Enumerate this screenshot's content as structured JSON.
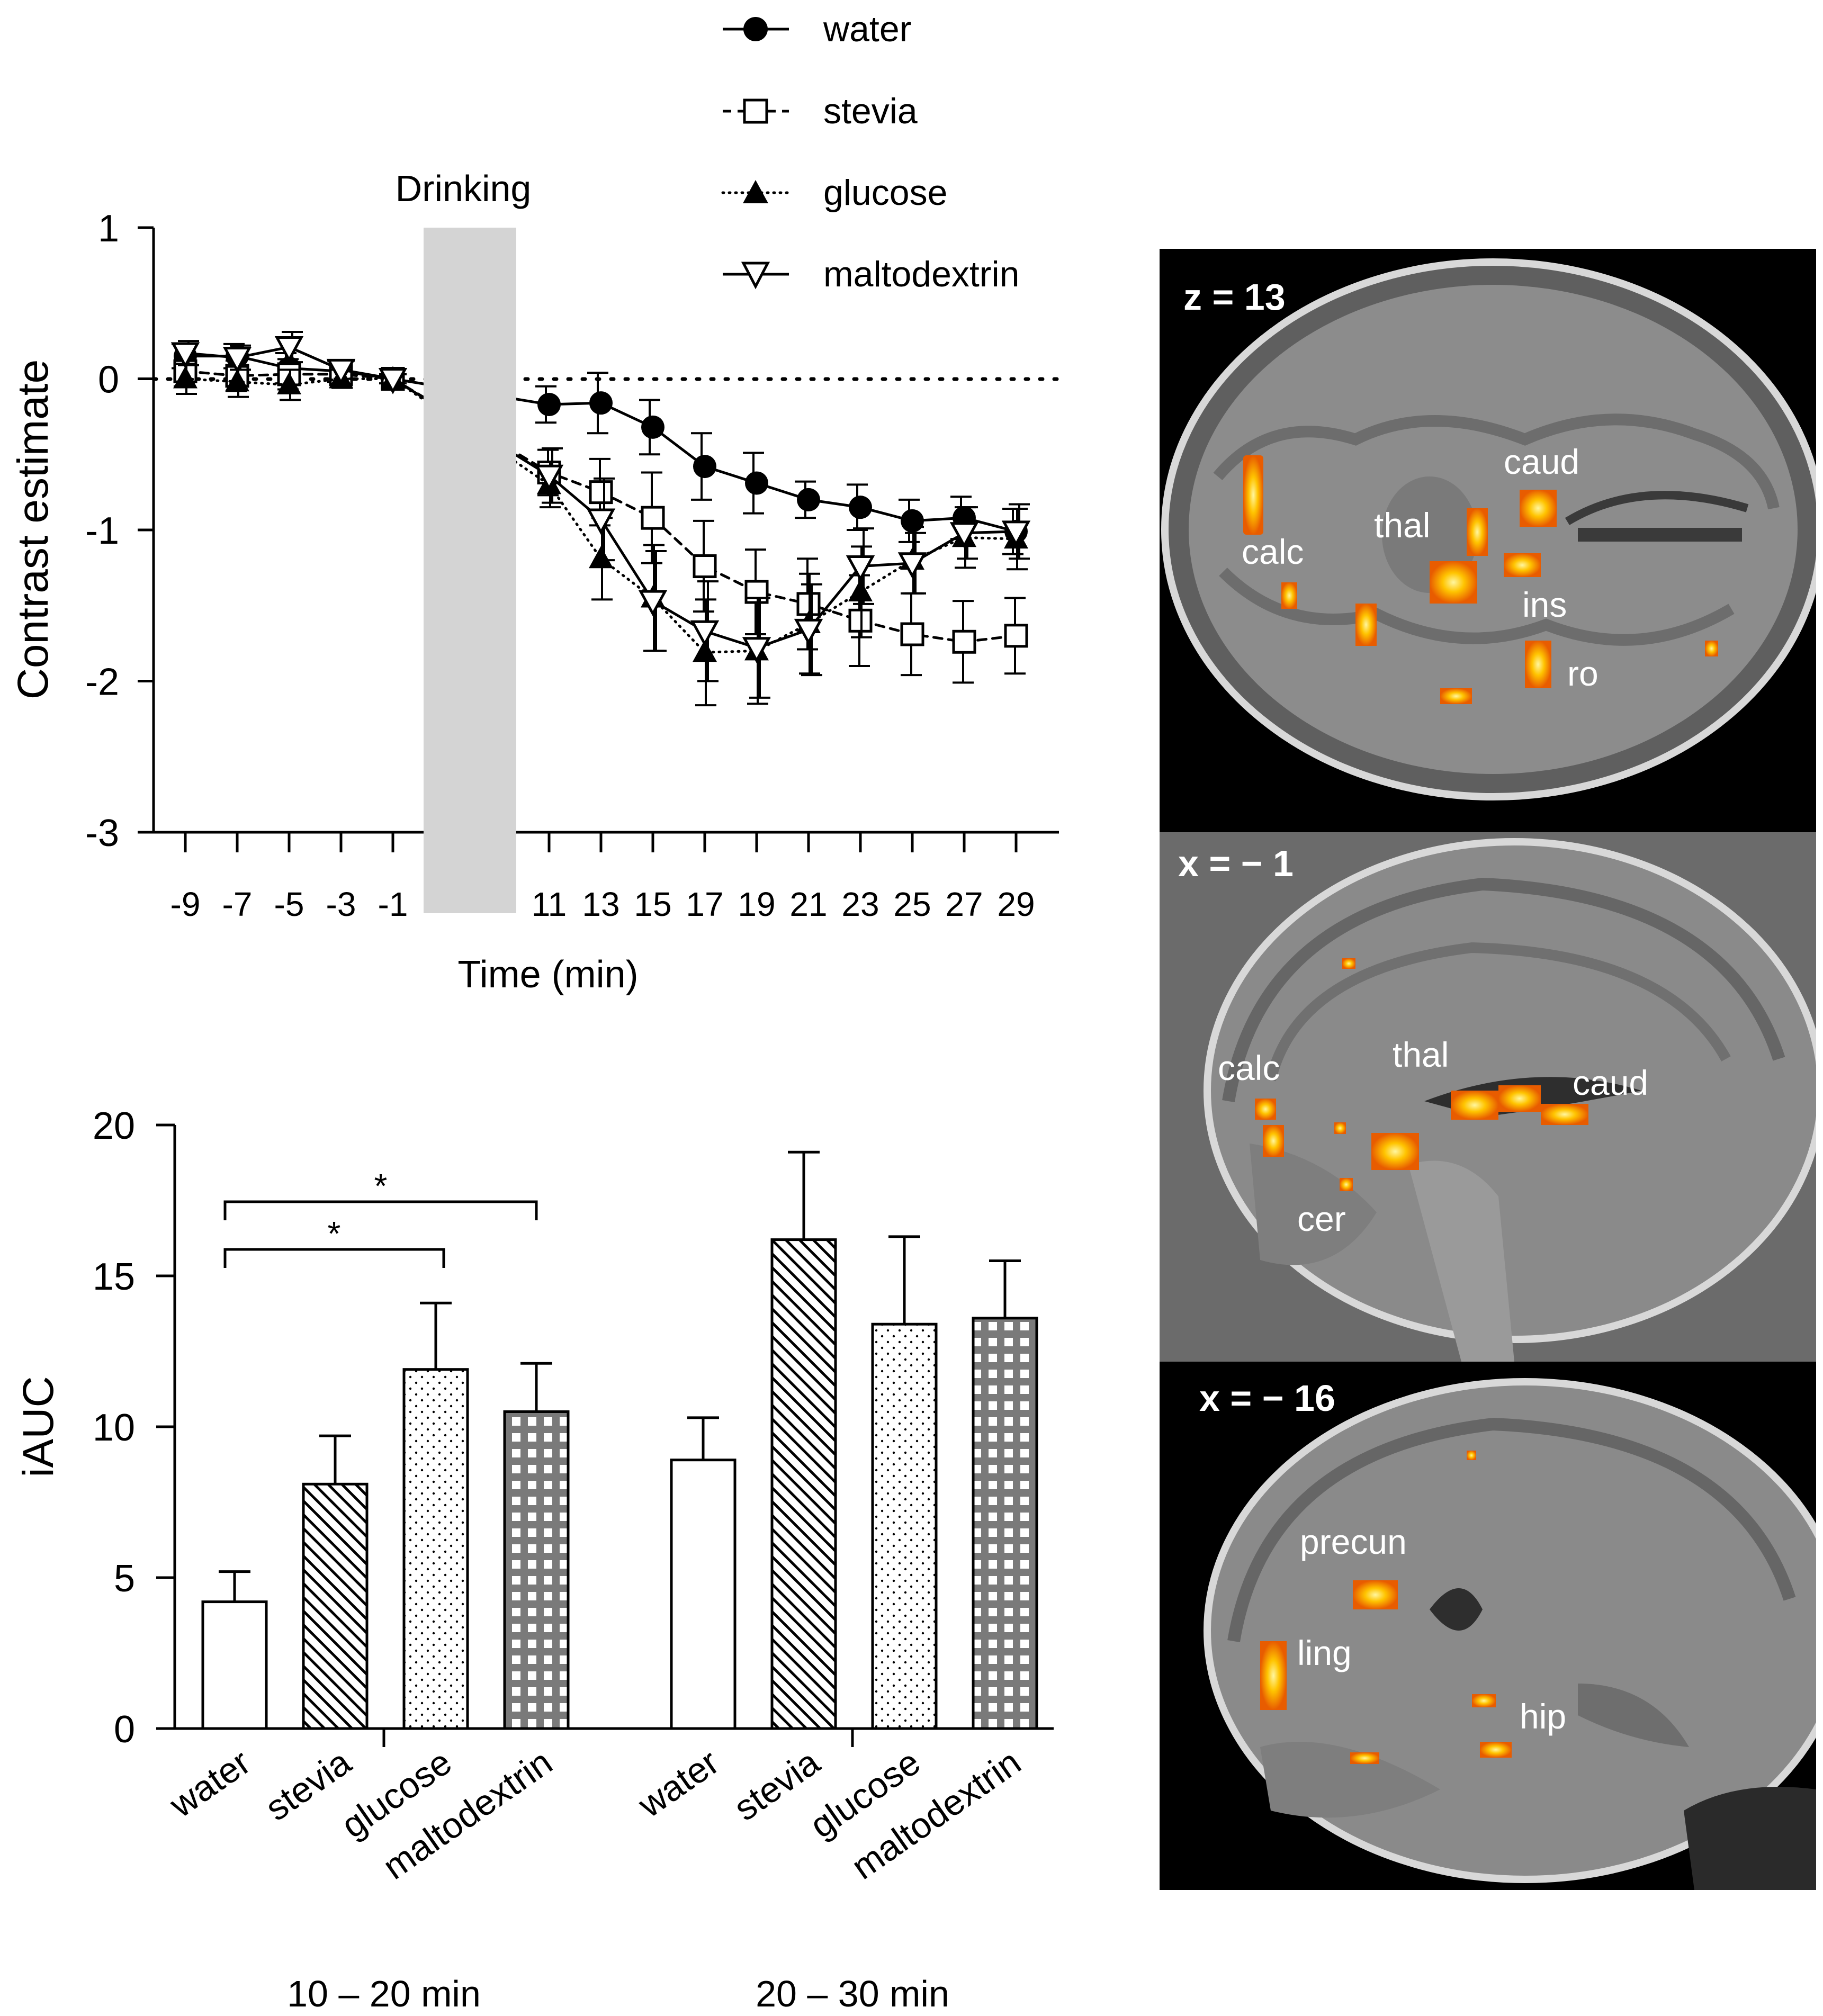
{
  "line_panel": {
    "drinking_label": "Drinking",
    "ylabel": "Contrast estimate",
    "xlabel": "Time (min)",
    "y_ticks": [
      "1",
      "0",
      "-1",
      "-2",
      "-3"
    ],
    "x_ticks": [
      "-9",
      "-7",
      "-5",
      "-3",
      "-1",
      "11",
      "13",
      "15",
      "17",
      "19",
      "21",
      "23",
      "25",
      "27",
      "29"
    ]
  },
  "legend": [
    "water",
    "stevia",
    "glucose",
    "maltodextrin"
  ],
  "bar_panel": {
    "ylabel": "iAUC",
    "y_ticks": [
      "20",
      "15",
      "10",
      "5",
      "0"
    ],
    "group_labels": [
      "10 – 20 min",
      "20 – 30 min"
    ],
    "categories": [
      "water",
      "stevia",
      "glucose",
      "maltodextrin"
    ],
    "significance_marks": [
      "*",
      "*"
    ]
  },
  "brain_panels": [
    {
      "coord_label": "z = 13",
      "labels": [
        "caud",
        "thal",
        "calc",
        "ins",
        "ro"
      ]
    },
    {
      "coord_label": "x = − 1",
      "labels": [
        "calc",
        "thal",
        "caud",
        "cer"
      ]
    },
    {
      "coord_label": "x = − 16",
      "labels": [
        "precun",
        "ling",
        "hip"
      ]
    }
  ],
  "colors": {
    "axis": "#000000",
    "drinking_band": "#d4d4d4",
    "bar_pattern": "#7a7a7a",
    "mri_background": "#000000",
    "activation_low": "#e85c00",
    "activation_high": "#fff36a"
  },
  "chart_data": [
    {
      "type": "line",
      "title": "",
      "xlabel": "Time (min)",
      "ylabel": "Contrast estimate",
      "ylim": [
        -3,
        1
      ],
      "xlim": [
        -10,
        30
      ],
      "drinking_period": [
        0,
        9
      ],
      "reference_line_y": 0,
      "x": [
        -9,
        -7,
        -5,
        -3,
        -1,
        11,
        13,
        15,
        17,
        19,
        21,
        23,
        25,
        27,
        29
      ],
      "series": [
        {
          "name": "water",
          "marker": "filled-circle",
          "line": "solid",
          "values": [
            0.15,
            0.15,
            0.07,
            0.05,
            0.0,
            -0.17,
            -0.16,
            -0.32,
            -0.58,
            -0.69,
            -0.8,
            -0.85,
            -0.94,
            -0.92,
            -1.01
          ],
          "errors": [
            0.08,
            0.08,
            0.1,
            0.07,
            0.03,
            0.12,
            0.2,
            0.18,
            0.22,
            0.2,
            0.12,
            0.15,
            0.14,
            0.14,
            0.15
          ]
        },
        {
          "name": "stevia",
          "marker": "open-square",
          "line": "dashed",
          "values": [
            0.05,
            0.02,
            0.03,
            0.03,
            0.0,
            -0.62,
            -0.75,
            -0.92,
            -1.24,
            -1.41,
            -1.49,
            -1.6,
            -1.69,
            -1.74,
            -1.7
          ],
          "errors": [
            0.1,
            0.1,
            0.1,
            0.07,
            0.03,
            0.15,
            0.22,
            0.3,
            0.3,
            0.28,
            0.3,
            0.3,
            0.27,
            0.27,
            0.25
          ]
        },
        {
          "name": "glucose",
          "marker": "filled-triangle",
          "line": "dotted",
          "values": [
            0.0,
            -0.02,
            -0.04,
            0.0,
            0.0,
            -0.7,
            -1.19,
            -1.45,
            -1.81,
            -1.8,
            -1.62,
            -1.41,
            -1.2,
            -1.05,
            -1.06
          ],
          "errors": [
            0.1,
            0.1,
            0.1,
            0.06,
            0.03,
            0.15,
            0.27,
            0.35,
            0.35,
            0.35,
            0.33,
            0.3,
            0.22,
            0.2,
            0.2
          ]
        },
        {
          "name": "maltodextrin",
          "marker": "open-triangle-down",
          "line": "solid",
          "values": [
            0.17,
            0.14,
            0.21,
            0.06,
            0.0,
            -0.64,
            -0.93,
            -1.47,
            -1.67,
            -1.78,
            -1.66,
            -1.24,
            -1.22,
            -1.02,
            -1.01
          ],
          "errors": [
            0.08,
            0.08,
            0.1,
            0.06,
            0.03,
            0.18,
            0.27,
            0.33,
            0.33,
            0.33,
            0.3,
            0.25,
            0.2,
            0.17,
            0.18
          ]
        }
      ]
    },
    {
      "type": "bar",
      "title": "",
      "xlabel": "",
      "ylabel": "iAUC",
      "ylim": [
        0,
        20
      ],
      "groups": [
        "10 – 20 min",
        "20 – 30 min"
      ],
      "categories": [
        "water",
        "stevia",
        "glucose",
        "maltodextrin"
      ],
      "patterns": [
        "open",
        "diagonal-hatch",
        "dots",
        "grid"
      ],
      "series": [
        {
          "name": "10 – 20 min",
          "values": [
            4.2,
            8.1,
            11.9,
            10.5
          ],
          "errors": [
            1.0,
            1.6,
            2.2,
            1.6
          ]
        },
        {
          "name": "20 – 30 min",
          "values": [
            8.9,
            16.2,
            13.4,
            13.6
          ],
          "errors": [
            1.4,
            2.9,
            2.9,
            1.9
          ]
        }
      ],
      "significance": [
        {
          "from": "water",
          "to": "glucose",
          "group": "10 – 20 min",
          "mark": "*"
        },
        {
          "from": "water",
          "to": "maltodextrin",
          "group": "10 – 20 min",
          "mark": "*"
        }
      ]
    }
  ]
}
